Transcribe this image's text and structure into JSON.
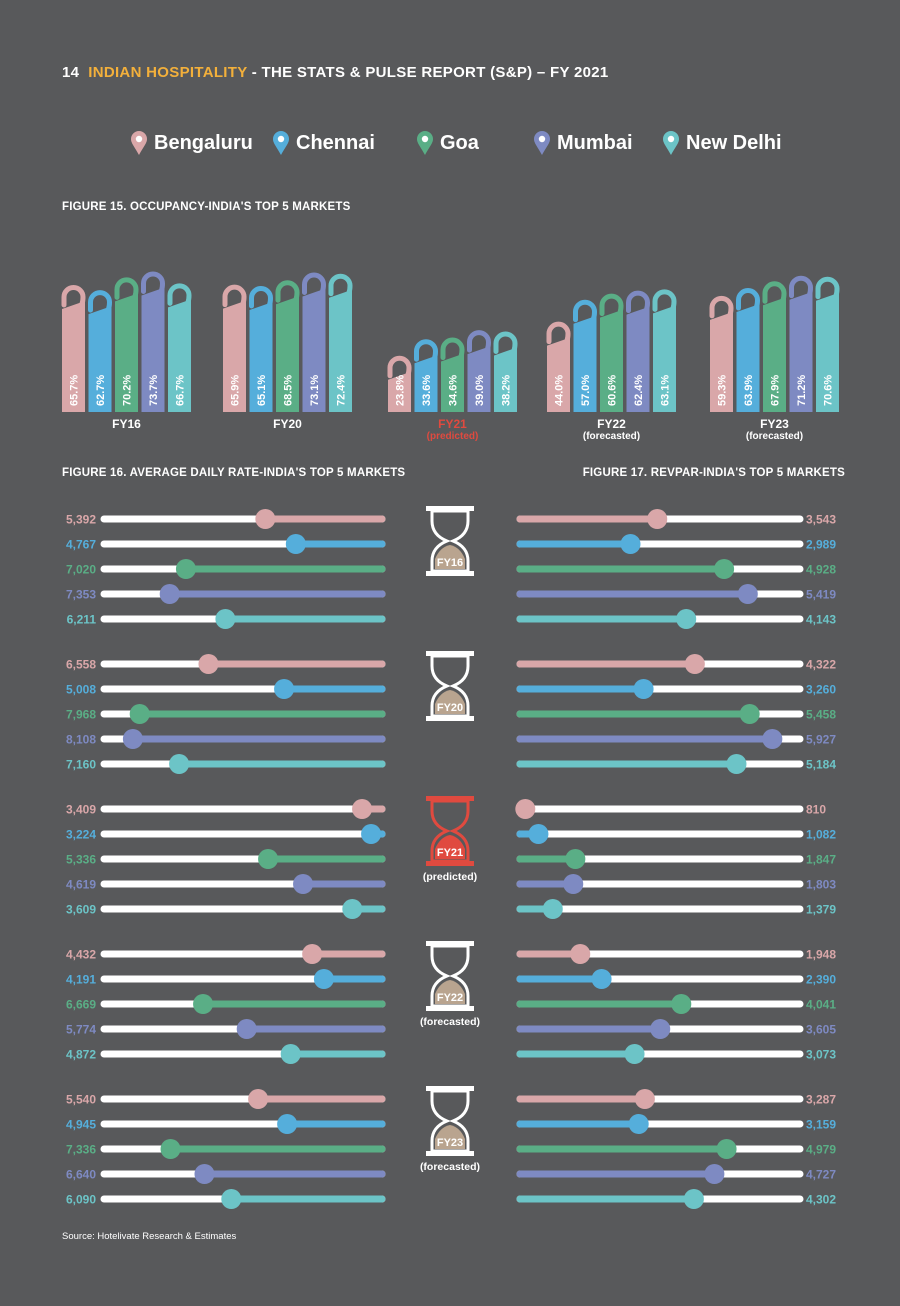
{
  "header": {
    "page_number": "14",
    "brand": "INDIAN HOSPITALITY",
    "rest": " - THE STATS & PULSE REPORT (S&P) – FY 2021"
  },
  "colors": {
    "Bengaluru": "#d9a7a9",
    "Chennai": "#55aedb",
    "Goa": "#5aae86",
    "Mumbai": "#7e8ac2",
    "New Delhi": "#6cc4c7",
    "highlight": "#e04a3f",
    "hourglass_sand": "#b9a48f"
  },
  "legend": [
    "Bengaluru",
    "Chennai",
    "Goa",
    "Mumbai",
    "New Delhi"
  ],
  "fig15_title": "FIGURE 15. OCCUPANCY-INDIA'S TOP 5 MARKETS",
  "fig16_title": "FIGURE 16. AVERAGE DAILY RATE-INDIA'S TOP 5 MARKETS",
  "fig17_title": "FIGURE 17. REVPAR-INDIA'S TOP 5 MARKETS",
  "source": "Source: Hotelivate Research & Estimates",
  "chart_data": [
    {
      "type": "bar",
      "title": "FIGURE 15. OCCUPANCY-INDIA'S TOP 5 MARKETS",
      "categories": [
        "FY16",
        "FY20",
        "FY21",
        "FY22",
        "FY23"
      ],
      "category_notes": [
        "",
        "",
        "(predicted)",
        "(forecasted)",
        "(forecasted)"
      ],
      "series": [
        {
          "name": "Bengaluru",
          "values": [
            65.7,
            65.9,
            23.8,
            44.0,
            59.3
          ]
        },
        {
          "name": "Chennai",
          "values": [
            62.7,
            65.1,
            33.6,
            57.0,
            63.9
          ]
        },
        {
          "name": "Goa",
          "values": [
            70.2,
            68.5,
            34.6,
            60.6,
            67.9
          ]
        },
        {
          "name": "Mumbai",
          "values": [
            73.7,
            73.1,
            39.0,
            62.4,
            71.2
          ]
        },
        {
          "name": "New Delhi",
          "values": [
            66.7,
            72.4,
            38.2,
            63.1,
            70.6
          ]
        }
      ],
      "unit": "%"
    },
    {
      "type": "bar",
      "title": "FIGURE 16. AVERAGE DAILY RATE-INDIA'S TOP 5 MARKETS",
      "categories": [
        "FY16",
        "FY20",
        "FY21",
        "FY22",
        "FY23"
      ],
      "series": [
        {
          "name": "Bengaluru",
          "values": [
            5392,
            6558,
            3409,
            4432,
            5540
          ]
        },
        {
          "name": "Chennai",
          "values": [
            4767,
            5008,
            3224,
            4191,
            4945
          ]
        },
        {
          "name": "Goa",
          "values": [
            7020,
            7968,
            5336,
            6669,
            7336
          ]
        },
        {
          "name": "Mumbai",
          "values": [
            7353,
            8108,
            4619,
            5774,
            6640
          ]
        },
        {
          "name": "New Delhi",
          "values": [
            6211,
            7160,
            3609,
            4872,
            6090
          ]
        }
      ]
    },
    {
      "type": "bar",
      "title": "FIGURE 17. REVPAR-INDIA'S TOP 5 MARKETS",
      "categories": [
        "FY16",
        "FY20",
        "FY21",
        "FY22",
        "FY23"
      ],
      "series": [
        {
          "name": "Bengaluru",
          "values": [
            3543,
            4322,
            810,
            1948,
            3287
          ]
        },
        {
          "name": "Chennai",
          "values": [
            2989,
            3260,
            1082,
            2390,
            3159
          ]
        },
        {
          "name": "Goa",
          "values": [
            4928,
            5458,
            1847,
            4041,
            4979
          ]
        },
        {
          "name": "Mumbai",
          "values": [
            5419,
            5927,
            1803,
            3605,
            4727
          ]
        },
        {
          "name": "New Delhi",
          "values": [
            4143,
            5184,
            1379,
            3073,
            4302
          ]
        }
      ]
    }
  ]
}
